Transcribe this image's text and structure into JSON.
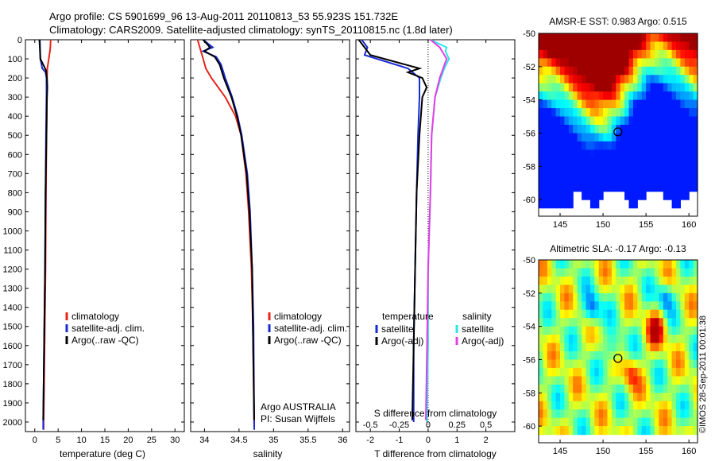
{
  "header": {
    "line1": "Argo profile: CS 5901699_96 13-Aug-2011 20110813_53 55.923S 151.732E",
    "line2": "Climatology: CARS2009. Satellite-adjusted climatology: synTS_20110815.nc (1.8d later)"
  },
  "stamp": "©IMOS 28-Sep-2011 00:01:38",
  "colors": {
    "climatology": "#e8231a",
    "satellite": "#1a2bd6",
    "argo": "#000000",
    "satellite_salinity": "#29e6e6",
    "argo_salinity": "#e63ce6"
  },
  "chart_data": [
    {
      "type": "line",
      "id": "temperature",
      "xlabel": "temperature (deg C)",
      "ylabel": "",
      "xlim": [
        -2,
        32
      ],
      "ylim": [
        2050,
        0
      ],
      "xticks": [
        0,
        5,
        10,
        15,
        20,
        25,
        30
      ],
      "yticks": [
        0,
        100,
        200,
        300,
        400,
        500,
        600,
        700,
        800,
        900,
        1000,
        1100,
        1200,
        1300,
        1400,
        1500,
        1600,
        1700,
        1800,
        1900,
        2000
      ],
      "legend": [
        "climatology",
        "satellite-adj. clim.",
        "Argo(..raw -QC)"
      ],
      "series": [
        {
          "name": "climatology",
          "color": "#e8231a",
          "depth": [
            0,
            50,
            100,
            150,
            200,
            300,
            500,
            800,
            1200,
            1600,
            2000,
            2040
          ],
          "values": [
            3.4,
            3.3,
            3.0,
            2.7,
            2.6,
            2.6,
            2.5,
            2.4,
            2.3,
            2.1,
            1.9,
            1.9
          ]
        },
        {
          "name": "satellite-adj. clim.",
          "color": "#1a2bd6",
          "depth": [
            0,
            100,
            150,
            170,
            200,
            300,
            500,
            800,
            1200,
            1600,
            2000,
            2040
          ],
          "values": [
            1.1,
            1.2,
            1.6,
            2.3,
            2.5,
            2.5,
            2.4,
            2.3,
            2.2,
            2.0,
            1.8,
            1.8
          ]
        },
        {
          "name": "Argo(..raw -QC)",
          "color": "#000000",
          "depth": [
            0,
            100,
            160,
            200,
            250,
            300,
            500,
            800,
            1200,
            1600,
            1990
          ],
          "values": [
            1.0,
            1.2,
            2.4,
            2.6,
            2.7,
            2.6,
            2.5,
            2.3,
            2.2,
            2.0,
            1.8
          ]
        }
      ]
    },
    {
      "type": "line",
      "id": "salinity",
      "xlabel": "salinity",
      "xlim": [
        33.8,
        36.1
      ],
      "ylim": [
        2050,
        0
      ],
      "xticks": [
        34,
        34.5,
        35,
        35.5,
        36
      ],
      "legend": [
        "climatology",
        "satellite-adj. clim.",
        "Argo(..raw -QC)"
      ],
      "annotation": [
        "Argo AUSTRALIA",
        "PI: Susan Wijffels"
      ],
      "series": [
        {
          "name": "climatology",
          "color": "#e8231a",
          "depth": [
            0,
            100,
            150,
            200,
            250,
            300,
            400,
            500,
            700,
            900,
            1200,
            1500,
            2040
          ],
          "values": [
            33.9,
            33.98,
            34.02,
            34.1,
            34.2,
            34.3,
            34.45,
            34.53,
            34.6,
            34.64,
            34.68,
            34.7,
            34.72
          ]
        },
        {
          "name": "satellite-adj. clim.",
          "color": "#1a2bd6",
          "depth": [
            0,
            40,
            60,
            90,
            130,
            200,
            300,
            400,
            500,
            700,
            900,
            1200,
            1500,
            2040
          ],
          "values": [
            33.98,
            34.12,
            33.98,
            34.17,
            34.24,
            34.3,
            34.4,
            34.48,
            34.54,
            34.62,
            34.66,
            34.69,
            34.71,
            34.72
          ]
        },
        {
          "name": "Argo(..raw -QC)",
          "color": "#000000",
          "depth": [
            0,
            40,
            60,
            90,
            130,
            200,
            300,
            400,
            500,
            700,
            900,
            1200,
            1500,
            1990
          ],
          "values": [
            33.98,
            34.08,
            34.0,
            34.15,
            34.22,
            34.28,
            34.39,
            34.47,
            34.53,
            34.61,
            34.65,
            34.69,
            34.7,
            34.72
          ]
        }
      ]
    },
    {
      "type": "line",
      "id": "difference",
      "xlabel_top": "S difference from climatology",
      "xlabel": "T difference from climatology",
      "xlim": [
        -2.5,
        3
      ],
      "ylim": [
        2050,
        0
      ],
      "xticks": [
        -2,
        -1,
        0,
        1,
        2
      ],
      "xticks_top_values": [
        -0.5,
        -0.25,
        0,
        0.25,
        0.5
      ],
      "xticks_top_labels": [
        "-0.5",
        "-0.25",
        "0",
        "0.25",
        "0.5"
      ],
      "legend_titles": [
        "temperature",
        "salinity"
      ],
      "legend": [
        "satellite",
        "Argo(-adj)",
        "satellite",
        "Argo(-adj)"
      ],
      "series": [
        {
          "name": "temperature satellite",
          "color": "#1a2bd6",
          "depth": [
            0,
            40,
            80,
            150,
            200,
            300,
            500,
            800,
            1200,
            1600,
            2000
          ],
          "values": [
            -2.3,
            -2.1,
            -2.2,
            -0.7,
            -0.3,
            -0.3,
            -0.35,
            -0.4,
            -0.45,
            -0.5,
            -0.5
          ]
        },
        {
          "name": "temperature Argo(-adj)",
          "color": "#000000",
          "depth": [
            0,
            40,
            80,
            150,
            170,
            200,
            250,
            300,
            500,
            800,
            1200,
            1600,
            1990
          ],
          "values": [
            -2.4,
            -2.2,
            -2.0,
            -0.3,
            -0.7,
            -0.2,
            -0.05,
            -0.2,
            -0.3,
            -0.4,
            -0.45,
            -0.5,
            -0.55
          ]
        },
        {
          "name": "salinity satellite",
          "color": "#29e6e6",
          "depth": [
            0,
            40,
            60,
            100,
            150,
            200,
            300,
            500,
            800,
            1200,
            1600,
            2000
          ],
          "values": [
            0.02,
            0.16,
            0.15,
            0.18,
            0.14,
            0.11,
            0.06,
            0.03,
            0.02,
            0.0,
            0.0,
            -0.01
          ]
        },
        {
          "name": "salinity Argo(-adj)",
          "color": "#e63ce6",
          "depth": [
            0,
            40,
            60,
            100,
            150,
            200,
            300,
            500,
            800,
            1200,
            1600,
            1990
          ],
          "values": [
            0.02,
            0.1,
            0.12,
            0.16,
            0.13,
            0.1,
            0.06,
            0.03,
            0.02,
            0.0,
            -0.01,
            -0.02
          ]
        }
      ]
    },
    {
      "type": "heatmap",
      "id": "sst_map",
      "title": "AMSR-E SST: 0.983 Argo: 0.515",
      "xlim": [
        142.5,
        161
      ],
      "ylim": [
        -61,
        -50
      ],
      "xticks": [
        145,
        150,
        155,
        160
      ],
      "yticks": [
        -50,
        -52,
        -54,
        -56,
        -58,
        -60
      ],
      "argo_position": {
        "lon": 151.732,
        "lat": -55.923
      }
    },
    {
      "type": "heatmap",
      "id": "sla_map",
      "title": "Altimetric SLA: -0.17 Argo: -0.13",
      "xlim": [
        142.5,
        161
      ],
      "ylim": [
        -61,
        -50
      ],
      "xticks": [
        145,
        150,
        155,
        160
      ],
      "yticks": [
        -50,
        -52,
        -54,
        -56,
        -58,
        -60
      ],
      "argo_position": {
        "lon": 151.732,
        "lat": -55.923
      }
    }
  ]
}
